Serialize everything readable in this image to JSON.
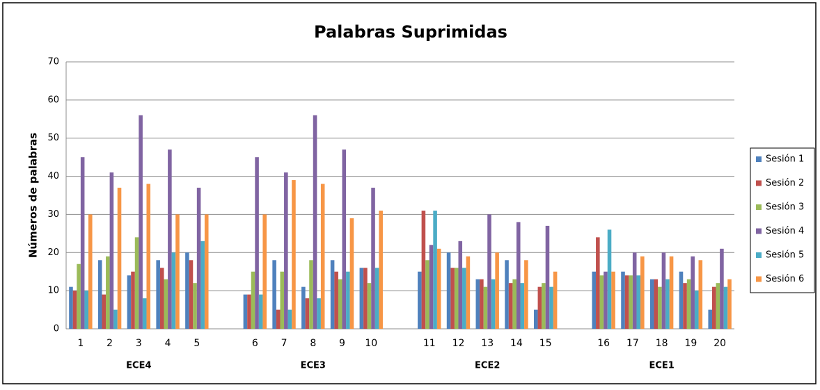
{
  "chart_data": {
    "type": "bar",
    "title": "Palabras Suprimidas",
    "y_label": "Números de palabras",
    "categories": [
      "1",
      "2",
      "3",
      "4",
      "5",
      "6",
      "7",
      "8",
      "9",
      "10",
      "11",
      "12",
      "13",
      "14",
      "15",
      "16",
      "17",
      "18",
      "19",
      "20"
    ],
    "groups": [
      "ECE4",
      "ECE3",
      "ECE2",
      "ECE1"
    ],
    "series": [
      {
        "name": "Sesión 1",
        "color": "#4f81bd",
        "values": [
          11,
          18,
          14,
          18,
          20,
          9,
          18,
          11,
          18,
          16,
          15,
          20,
          13,
          18,
          5,
          15,
          15,
          13,
          15,
          5
        ]
      },
      {
        "name": "Sesión 2",
        "color": "#c0504d",
        "values": [
          10,
          9,
          15,
          16,
          18,
          9,
          5,
          8,
          15,
          16,
          31,
          16,
          13,
          12,
          11,
          24,
          14,
          13,
          12,
          11
        ]
      },
      {
        "name": "Sesión 3",
        "color": "#9bbb59",
        "values": [
          17,
          19,
          24,
          13,
          12,
          15,
          15,
          18,
          13,
          12,
          18,
          16,
          11,
          13,
          12,
          14,
          14,
          11,
          13,
          12
        ]
      },
      {
        "name": "Sesión 4",
        "color": "#8064a2",
        "values": [
          45,
          41,
          56,
          47,
          37,
          45,
          41,
          56,
          47,
          37,
          22,
          23,
          30,
          28,
          27,
          15,
          20,
          20,
          19,
          21
        ]
      },
      {
        "name": "Sesión 5",
        "color": "#4bacc6",
        "values": [
          10,
          5,
          8,
          20,
          23,
          9,
          5,
          8,
          15,
          16,
          31,
          16,
          13,
          12,
          11,
          26,
          14,
          13,
          10,
          11
        ]
      },
      {
        "name": "Sesión 6",
        "color": "#f79646",
        "values": [
          30,
          37,
          38,
          30,
          30,
          30,
          39,
          38,
          29,
          31,
          21,
          19,
          20,
          18,
          15,
          15,
          19,
          19,
          18,
          13
        ]
      }
    ],
    "ylim": [
      0,
      70
    ],
    "yticks": [
      0,
      10,
      20,
      30,
      40,
      50,
      60,
      70
    ],
    "grid": true,
    "legend": "right"
  }
}
